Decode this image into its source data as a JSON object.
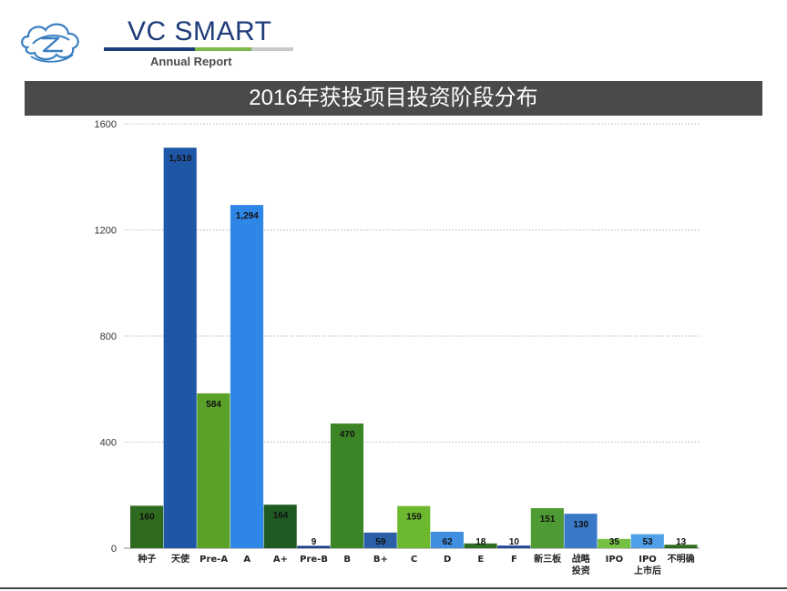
{
  "header": {
    "brand": "VC SMART",
    "subtitle": "Annual Report"
  },
  "chart_data": {
    "type": "bar",
    "title": "2016年获投项目投资阶段分布",
    "xlabel": "",
    "ylabel": "",
    "ylim": [
      0,
      1600
    ],
    "yticks": [
      0,
      400,
      800,
      1200,
      1600
    ],
    "grid": true,
    "categories": [
      [
        "种子"
      ],
      [
        "天使"
      ],
      [
        "Pre-A"
      ],
      [
        "A"
      ],
      [
        "A+"
      ],
      [
        "Pre-B"
      ],
      [
        "B"
      ],
      [
        "B+"
      ],
      [
        "C"
      ],
      [
        "D"
      ],
      [
        "E"
      ],
      [
        "F"
      ],
      [
        "新三板"
      ],
      [
        "战略",
        "投资"
      ],
      [
        "IPO"
      ],
      [
        "IPO",
        "上市后"
      ],
      [
        "不明确"
      ]
    ],
    "values": [
      160,
      1510,
      584,
      1294,
      164,
      9,
      470,
      59,
      159,
      62,
      18,
      10,
      151,
      130,
      35,
      53,
      13
    ],
    "value_labels": [
      "160",
      "1,510",
      "584",
      "1,294",
      "164",
      "9",
      "470",
      "59",
      "159",
      "62",
      "18",
      "10",
      "151",
      "130",
      "35",
      "53",
      "13"
    ],
    "colors": [
      "#2f6b1f",
      "#1f56a6",
      "#5aa12a",
      "#2e86e6",
      "#1e5a22",
      "#1e3f8a",
      "#3c8526",
      "#2b5fa8",
      "#6cb82f",
      "#3f8ee0",
      "#2d6e23",
      "#26479a",
      "#4e9a34",
      "#3a78c8",
      "#76c043",
      "#4fa0e8",
      "#2f6b1f"
    ]
  }
}
